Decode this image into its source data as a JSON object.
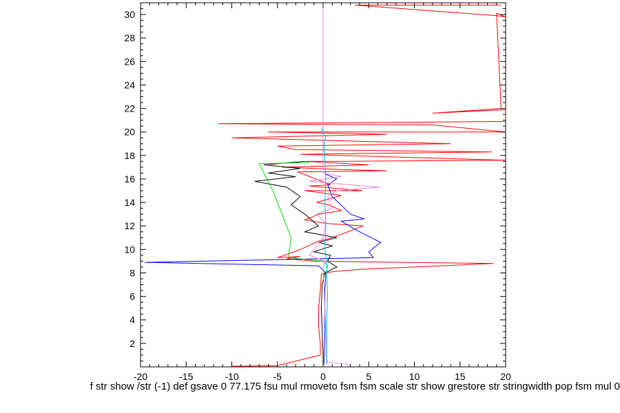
{
  "chart_data": {
    "type": "line",
    "xlim": [
      -20,
      20
    ],
    "ylim": [
      0,
      31
    ],
    "x_ticks": [
      -20,
      -15,
      -10,
      -5,
      0,
      5,
      10,
      15,
      20
    ],
    "y_ticks": [
      2,
      4,
      6,
      8,
      10,
      12,
      14,
      16,
      18,
      20,
      22,
      24,
      26,
      28,
      30
    ],
    "grid": false,
    "legend": "none",
    "series": [
      {
        "color": "#ff0000",
        "points": [
          [
            19.5,
            30.8
          ],
          [
            3.5,
            30.8
          ],
          [
            19,
            29.9
          ],
          [
            20,
            29.8
          ],
          [
            19,
            30.1
          ],
          [
            19.5,
            22.0
          ],
          [
            12,
            21.6
          ],
          [
            20,
            21.9
          ],
          [
            20,
            20.9
          ],
          [
            -11.5,
            20.7
          ],
          [
            12,
            20.6
          ],
          [
            20,
            20.0
          ],
          [
            -6,
            20.0
          ],
          [
            7,
            19.8
          ],
          [
            -10,
            19.5
          ],
          [
            14,
            19.0
          ],
          [
            -5,
            18.8
          ],
          [
            -3,
            18.5
          ],
          [
            18.5,
            18.3
          ],
          [
            -2.5,
            18.1
          ],
          [
            20,
            17.6
          ],
          [
            2,
            17.5
          ],
          [
            -2,
            17.5
          ],
          [
            5,
            17.2
          ],
          [
            -4.5,
            17.0
          ],
          [
            2,
            16.8
          ],
          [
            7,
            16.7
          ],
          [
            -2.8,
            16.6
          ],
          [
            -0.8,
            16.0
          ],
          [
            0.8,
            15.5
          ],
          [
            -1.5,
            15.4
          ],
          [
            4.3,
            15.0
          ],
          [
            -2.0,
            15.0
          ],
          [
            2,
            14.6
          ],
          [
            -0.7,
            14.0
          ],
          [
            0.6,
            13.8
          ],
          [
            2,
            13.3
          ],
          [
            -0.5,
            13.0
          ],
          [
            -2,
            12.5
          ],
          [
            0.5,
            12.2
          ],
          [
            4.4,
            12.0
          ],
          [
            1,
            11.0
          ],
          [
            -0.5,
            10.7
          ],
          [
            -2.5,
            10.0
          ],
          [
            -3.5,
            9.7
          ],
          [
            -5,
            9.3
          ],
          [
            -2.5,
            9.4
          ],
          [
            -4,
            9.2
          ],
          [
            -1,
            9.0
          ],
          [
            18.7,
            8.8
          ],
          [
            4,
            8.3
          ],
          [
            1,
            8.1
          ],
          [
            -0.2,
            7.9
          ],
          [
            -0.3,
            6.5
          ],
          [
            -0.5,
            5.0
          ],
          [
            -0.5,
            3.5
          ],
          [
            -0.3,
            2.0
          ],
          [
            -0.3,
            1.0
          ],
          [
            -4,
            0.3
          ],
          [
            -5,
            0.1
          ],
          [
            -10,
            0.05
          ]
        ]
      },
      {
        "color": "#0000ff",
        "points": [
          [
            0.3,
            16.4
          ],
          [
            1.5,
            16.0
          ],
          [
            0.5,
            15.5
          ],
          [
            1,
            14.5
          ],
          [
            3,
            13.0
          ],
          [
            4.5,
            12.6
          ],
          [
            2,
            12.4
          ],
          [
            4,
            11.5
          ],
          [
            6.3,
            10.6
          ],
          [
            5,
            9.8
          ],
          [
            5.5,
            9.3
          ],
          [
            -19.5,
            8.9
          ],
          [
            -0.5,
            8.6
          ],
          [
            0.3,
            8.0
          ],
          [
            0.2,
            6.5
          ],
          [
            0.2,
            4.8
          ],
          [
            0.2,
            3.0
          ],
          [
            0.1,
            1.0
          ],
          [
            0.1,
            0.2
          ]
        ]
      },
      {
        "color": "#000000",
        "points": [
          [
            -2,
            17.5
          ],
          [
            -6.5,
            17.2
          ],
          [
            -2.5,
            16.9
          ],
          [
            -6,
            16.5
          ],
          [
            -3,
            16.2
          ],
          [
            -7.5,
            15.8
          ],
          [
            -4,
            15.3
          ],
          [
            -2.5,
            14.5
          ],
          [
            -3.5,
            13.8
          ],
          [
            -2,
            13.0
          ],
          [
            -0.5,
            12.0
          ],
          [
            -2,
            11.5
          ],
          [
            1.5,
            11.0
          ],
          [
            -0.5,
            10.6
          ],
          [
            1,
            10.3
          ],
          [
            -1,
            9.8
          ],
          [
            0.8,
            9.5
          ],
          [
            0.5,
            9.0
          ],
          [
            1.5,
            8.5
          ],
          [
            0.2,
            8.0
          ],
          [
            -0.1,
            7.0
          ],
          [
            -0.2,
            5.0
          ],
          [
            -0.1,
            3.0
          ],
          [
            0,
            1.0
          ],
          [
            0,
            0.3
          ]
        ]
      },
      {
        "color": "#00dd00",
        "points": [
          [
            -1.5,
            17.4
          ],
          [
            -7,
            17.3
          ],
          [
            -5.5,
            15.0
          ],
          [
            -4.5,
            13.0
          ],
          [
            -3.5,
            11.0
          ],
          [
            -3.8,
            9.3
          ],
          [
            0,
            9.0
          ],
          [
            0.5,
            8.6
          ],
          [
            0.3,
            8.0
          ]
        ]
      },
      {
        "color": "#dd88dd",
        "points": [
          [
            0,
            31
          ],
          [
            0,
            16.5
          ],
          [
            2,
            16.2
          ],
          [
            -1.5,
            15.8
          ],
          [
            3,
            15.5
          ],
          [
            6.2,
            15.3
          ],
          [
            1.5,
            15.0
          ],
          [
            0.5,
            14.5
          ],
          [
            1,
            13.5
          ],
          [
            -0.7,
            13.0
          ],
          [
            0.3,
            12.2
          ],
          [
            0,
            11.0
          ],
          [
            -1.5,
            9.5
          ],
          [
            0.2,
            9.0
          ],
          [
            0,
            8.5
          ],
          [
            0.1,
            7.0
          ],
          [
            0.2,
            5.0
          ],
          [
            0.3,
            3.0
          ],
          [
            0.3,
            1.0
          ],
          [
            0.5,
            0.4
          ],
          [
            3,
            0.2
          ]
        ]
      },
      {
        "color": "#00b4ff",
        "points": [
          [
            0,
            20.4
          ],
          [
            -0.2,
            20.0
          ],
          [
            0.3,
            19.6
          ],
          [
            0.1,
            19.0
          ],
          [
            0.2,
            17.5
          ],
          [
            0.3,
            16.0
          ],
          [
            0.2,
            14.0
          ],
          [
            0.3,
            12.0
          ],
          [
            0.2,
            10.0
          ],
          [
            0.4,
            9.0
          ],
          [
            0.4,
            8.0
          ],
          [
            0.5,
            6.0
          ],
          [
            0.4,
            4.0
          ],
          [
            0.4,
            2.0
          ],
          [
            0.4,
            0.2
          ]
        ]
      }
    ]
  },
  "footer": {
    "text": "f str show /str (-1) def gsave 0 77.175 fsu mul rmoveto fsm fsm scale str show grestore str stringwidth pop fsm mul 0"
  }
}
